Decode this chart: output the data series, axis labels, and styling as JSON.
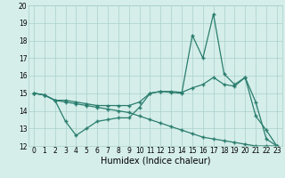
{
  "xlabel": "Humidex (Indice chaleur)",
  "x_values": [
    0,
    1,
    2,
    3,
    4,
    5,
    6,
    7,
    8,
    9,
    10,
    11,
    12,
    13,
    14,
    15,
    16,
    17,
    18,
    19,
    20,
    21,
    22,
    23
  ],
  "line1": [
    15.0,
    14.9,
    14.6,
    13.4,
    12.6,
    13.0,
    13.4,
    13.5,
    13.6,
    13.6,
    14.2,
    15.0,
    15.1,
    15.05,
    15.0,
    18.3,
    17.0,
    19.5,
    16.1,
    15.5,
    15.9,
    13.7,
    12.9,
    12.0
  ],
  "line2": [
    15.0,
    14.9,
    14.6,
    14.6,
    14.5,
    14.4,
    14.3,
    14.3,
    14.3,
    14.3,
    14.5,
    15.0,
    15.1,
    15.1,
    15.05,
    15.3,
    15.5,
    15.9,
    15.5,
    15.4,
    15.9,
    14.5,
    12.4,
    12.0
  ],
  "line3": [
    15.0,
    14.9,
    14.6,
    14.5,
    14.4,
    14.3,
    14.2,
    14.1,
    14.0,
    13.9,
    13.7,
    13.5,
    13.3,
    13.1,
    12.9,
    12.7,
    12.5,
    12.4,
    12.3,
    12.2,
    12.1,
    12.0,
    12.0,
    12.0
  ],
  "line_color": "#2a7d6e",
  "bg_color": "#d5eeea",
  "grid_color": "#aacfc9",
  "ylim": [
    12,
    20
  ],
  "xlim_min": -0.5,
  "xlim_max": 23.5,
  "yticks": [
    12,
    13,
    14,
    15,
    16,
    17,
    18,
    19,
    20
  ],
  "xticks": [
    0,
    1,
    2,
    3,
    4,
    5,
    6,
    7,
    8,
    9,
    10,
    11,
    12,
    13,
    14,
    15,
    16,
    17,
    18,
    19,
    20,
    21,
    22,
    23
  ],
  "marker": "+",
  "marker_size": 3,
  "linewidth": 0.9,
  "tick_fontsize": 5.5,
  "xlabel_fontsize": 7
}
